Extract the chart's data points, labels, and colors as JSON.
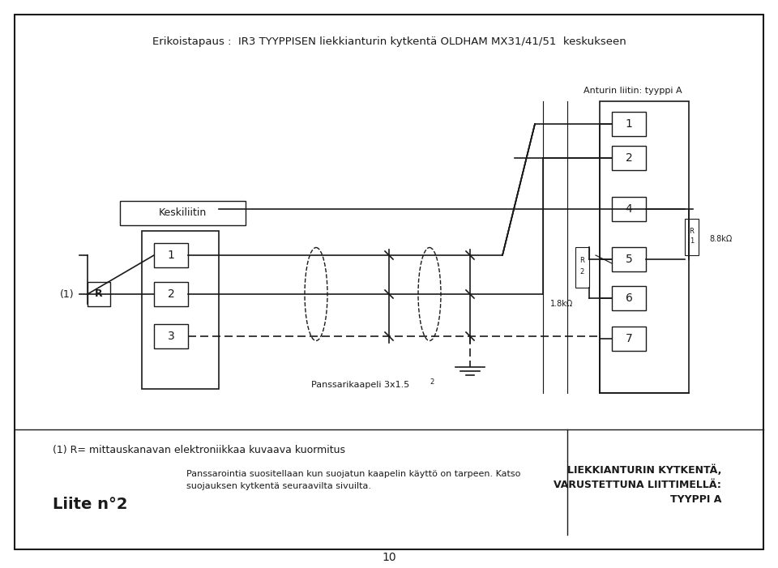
{
  "title": "Erikoistapaus :  IR3 TYYPPISEN liekkianturin kytkentä OLDHAM MX31/41/51  keskukseen",
  "page_border_color": "#000000",
  "background": "#ffffff",
  "text_color": "#1a1a1a",
  "anturin_label": "Anturin liitin: tyyppi A",
  "keskiliitin_label": "Keskiliitin",
  "footnote1": "(1) R= mittauskanavan elektroniikkaa kuvaava kuormitus",
  "footnote2_line1": "Panssarointia suositellaan kun suojatun kaapelin käyttö on tarpeen. Katso",
  "footnote2_line2": "suojauksen kytkentä seuraavilta sivuilta.",
  "bottom_right_line1": "LIEKKIANTURIN KYTKENTÄ,",
  "bottom_right_line2": "VARUSTETTUNA LIITTIMELLÄ:",
  "bottom_right_line3": "TYYPPI A",
  "cable_label": "Panssarikaapeli 3x1.5",
  "cable_superscript": "2",
  "label_1_left": "(1)",
  "R_label": "R",
  "R2_label": "R2",
  "resist_label": "1.8kΩ",
  "resist2_label": "8.8kΩ",
  "R1_label": "R1",
  "page_num": "10",
  "liite_label": "Liite n°2"
}
